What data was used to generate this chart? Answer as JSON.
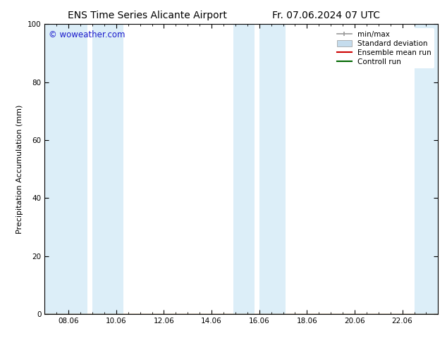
{
  "title_left": "ENS Time Series Alicante Airport",
  "title_right": "Fr. 07.06.2024 07 UTC",
  "ylabel": "Precipitation Accumulation (mm)",
  "watermark": "© woweather.com",
  "watermark_color": "#1a1acc",
  "ylim": [
    0,
    100
  ],
  "yticks": [
    0,
    20,
    40,
    60,
    80,
    100
  ],
  "xtick_labels": [
    "08.06",
    "10.06",
    "12.06",
    "14.06",
    "16.06",
    "18.06",
    "20.06",
    "22.06"
  ],
  "xmin": 7.0,
  "xmax": 23.5,
  "xtick_positions": [
    8.0,
    10.0,
    12.0,
    14.0,
    16.0,
    18.0,
    20.0,
    22.0
  ],
  "shaded_bands": [
    [
      7.0,
      8.8
    ],
    [
      9.0,
      10.3
    ],
    [
      14.9,
      15.8
    ],
    [
      16.0,
      17.1
    ],
    [
      22.5,
      23.5
    ]
  ],
  "band_color": "#dceef8",
  "background_color": "#ffffff",
  "legend_entries": [
    {
      "label": "min/max",
      "color": "#999999",
      "style": "line_with_bar"
    },
    {
      "label": "Standard deviation",
      "color": "#c5dced",
      "style": "filled_box"
    },
    {
      "label": "Ensemble mean run",
      "color": "#cc0000",
      "style": "line"
    },
    {
      "label": "Controll run",
      "color": "#006600",
      "style": "line"
    }
  ],
  "title_fontsize": 10,
  "axis_fontsize": 8,
  "tick_fontsize": 7.5,
  "legend_fontsize": 7.5
}
